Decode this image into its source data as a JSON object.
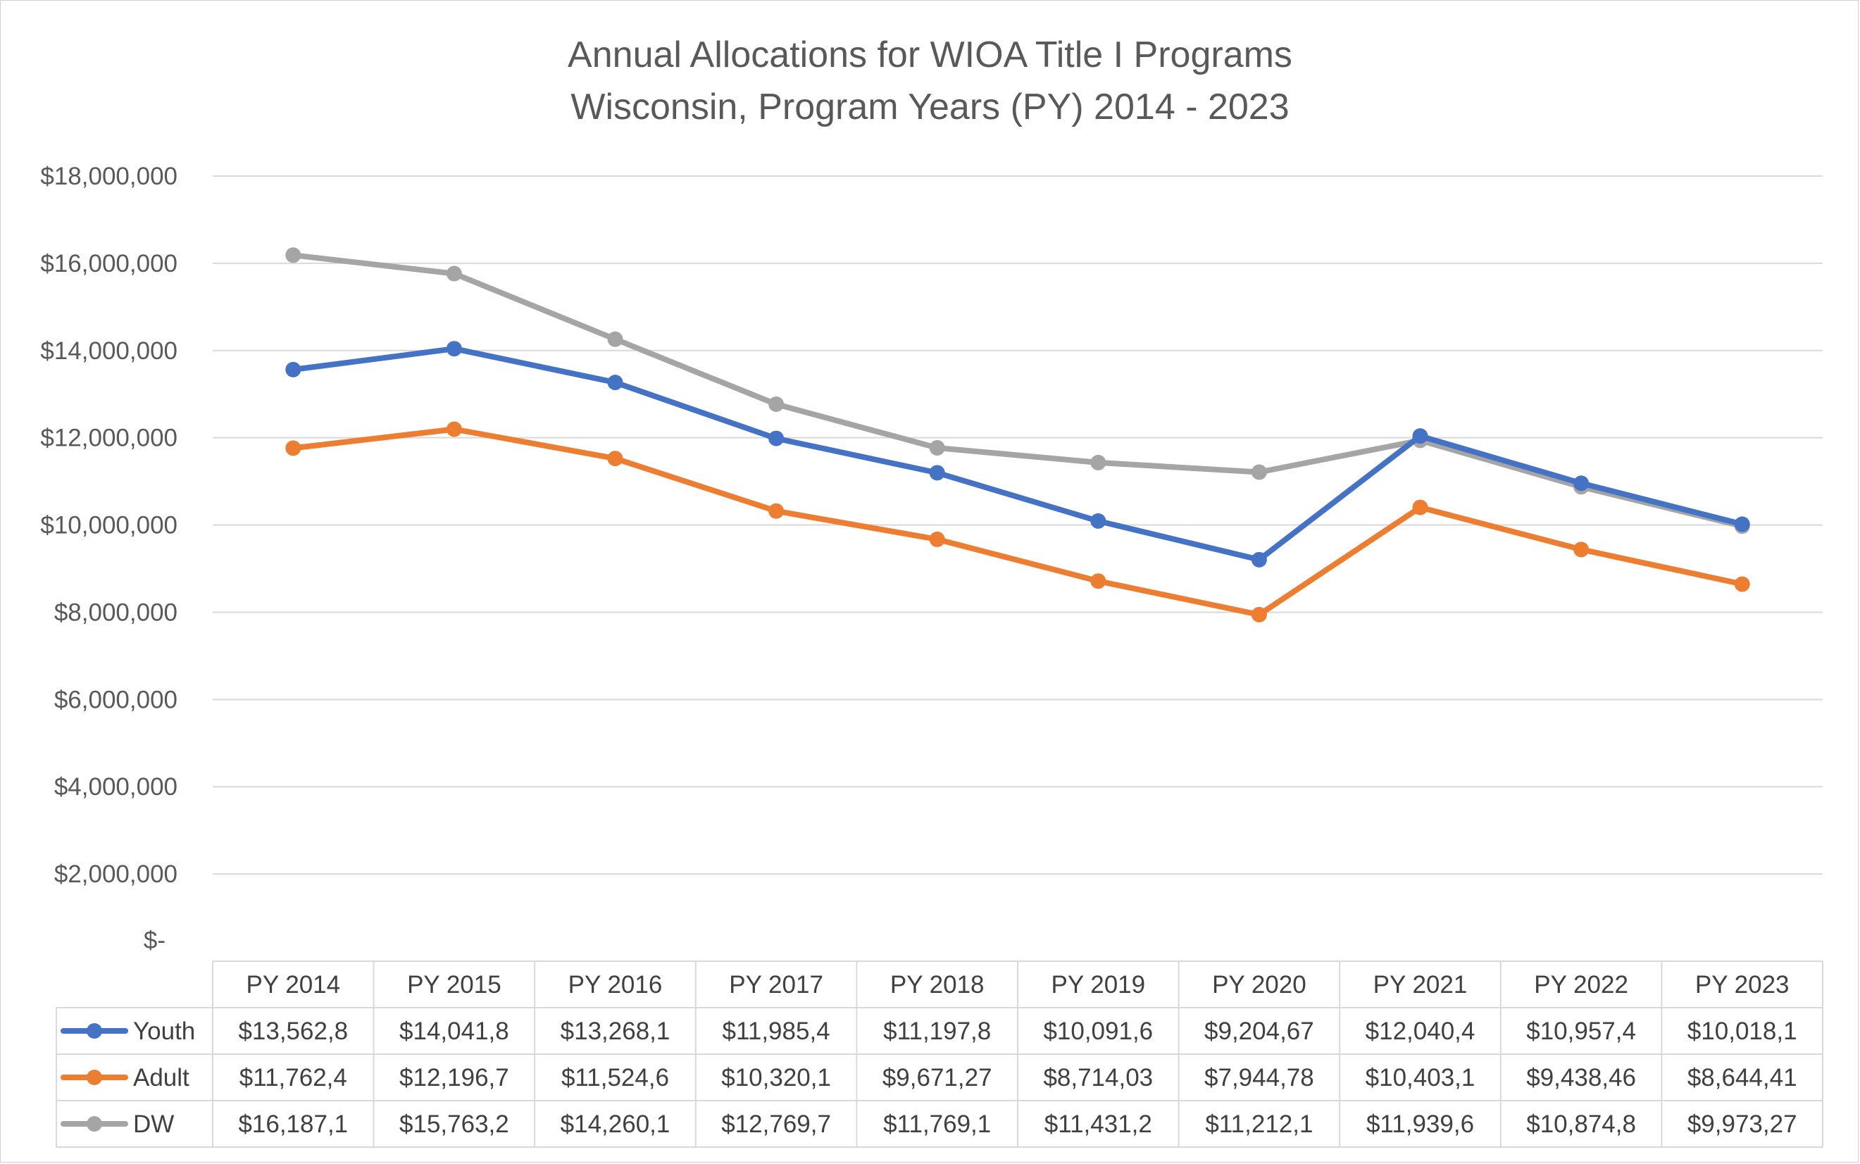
{
  "chart_data": {
    "type": "line",
    "title": "Annual Allocations for WIOA Title I Programs",
    "subtitle": "Wisconsin, Program Years (PY) 2014 - 2023",
    "categories": [
      "PY 2014",
      "PY 2015",
      "PY 2016",
      "PY 2017",
      "PY 2018",
      "PY 2019",
      "PY 2020",
      "PY 2021",
      "PY 2022",
      "PY 2023"
    ],
    "ylim": [
      0,
      18000000
    ],
    "yticks": [
      {
        "value": 0,
        "label": "$-"
      },
      {
        "value": 2000000,
        "label": "$2,000,000"
      },
      {
        "value": 4000000,
        "label": "$4,000,000"
      },
      {
        "value": 6000000,
        "label": "$6,000,000"
      },
      {
        "value": 8000000,
        "label": "$8,000,000"
      },
      {
        "value": 10000000,
        "label": "$10,000,000"
      },
      {
        "value": 12000000,
        "label": "$12,000,000"
      },
      {
        "value": 14000000,
        "label": "$14,000,000"
      },
      {
        "value": 16000000,
        "label": "$16,000,000"
      },
      {
        "value": 18000000,
        "label": "$18,000,000"
      }
    ],
    "grid": true,
    "legend": "data-table",
    "series": [
      {
        "name": "Youth",
        "color": "#4472C4",
        "values": [
          13562800,
          14041800,
          13268100,
          11985400,
          11197800,
          10091600,
          9204670,
          12040400,
          10957400,
          10018100
        ],
        "table_labels": [
          "$13,562,8",
          "$14,041,8",
          "$13,268,1",
          "$11,985,4",
          "$11,197,8",
          "$10,091,6",
          "$9,204,67",
          "$12,040,4",
          "$10,957,4",
          "$10,018,1"
        ]
      },
      {
        "name": "Adult",
        "color": "#ED7D31",
        "values": [
          11762400,
          12196700,
          11524600,
          10320100,
          9671270,
          8714030,
          7944780,
          10403100,
          9438460,
          8644410
        ],
        "table_labels": [
          "$11,762,4",
          "$12,196,7",
          "$11,524,6",
          "$10,320,1",
          "$9,671,27",
          "$8,714,03",
          "$7,944,78",
          "$10,403,1",
          "$9,438,46",
          "$8,644,41"
        ]
      },
      {
        "name": "DW",
        "color": "#A5A5A5",
        "values": [
          16187100,
          15763200,
          14260100,
          12769700,
          11769100,
          11431200,
          11212100,
          11939600,
          10874800,
          9973270
        ],
        "table_labels": [
          "$16,187,1",
          "$15,763,2",
          "$14,260,1",
          "$12,769,7",
          "$11,769,1",
          "$11,431,2",
          "$11,212,1",
          "$11,939,6",
          "$10,874,8",
          "$9,973,27"
        ]
      }
    ]
  }
}
